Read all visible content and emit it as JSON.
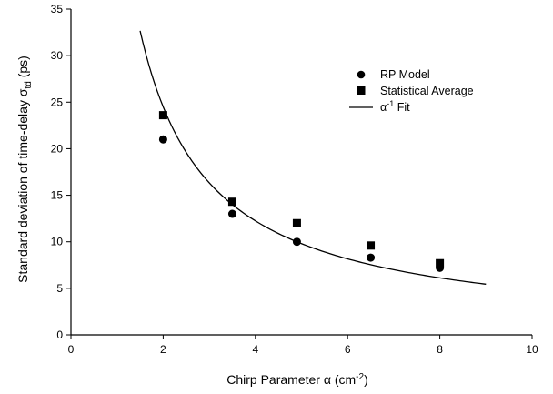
{
  "chart_data": {
    "type": "scatter",
    "title": "",
    "xlabel": "Chirp Parameter α (cm⁻²)",
    "ylabel": "Standard deviation of time-delay σtd (ps)",
    "xlim": [
      0,
      10
    ],
    "ylim": [
      0,
      35
    ],
    "xticks": [
      0,
      2,
      4,
      6,
      8,
      10
    ],
    "yticks": [
      0,
      5,
      10,
      15,
      20,
      25,
      30,
      35
    ],
    "grid": false,
    "legend_position": "top-right",
    "series": [
      {
        "name": "RP Model",
        "marker": "circle",
        "x": [
          2.0,
          3.5,
          4.9,
          6.5,
          8.0
        ],
        "y": [
          21.0,
          13.0,
          10.0,
          8.3,
          7.2
        ]
      },
      {
        "name": "Statistical Average",
        "marker": "square",
        "x": [
          2.0,
          3.5,
          4.9,
          6.5,
          8.0
        ],
        "y": [
          23.6,
          14.3,
          12.0,
          9.6,
          7.7
        ]
      },
      {
        "name": "α⁻¹ Fit",
        "marker": "line",
        "function": "a/x",
        "coefficient": 49,
        "x_range": [
          1.5,
          9.0
        ]
      }
    ]
  }
}
